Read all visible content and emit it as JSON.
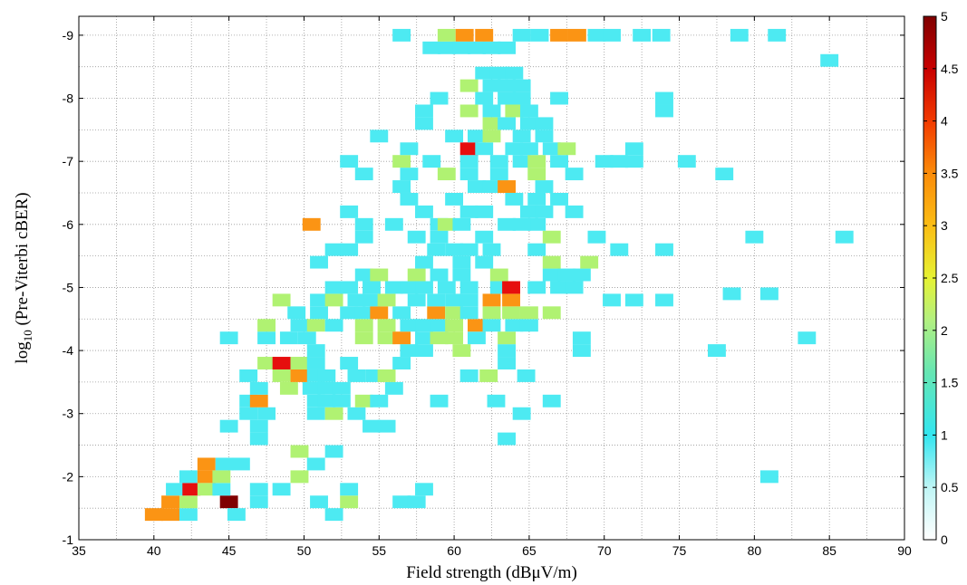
{
  "chart_data": {
    "type": "heatmap",
    "xlabel": "Field strength (dBμV/m)",
    "ylabel_main": "log",
    "ylabel_sub": "10",
    "ylabel_rest": " (Pre-Viterbi cBER)",
    "xlim": [
      35,
      90
    ],
    "ylim": [
      -9.3,
      -1
    ],
    "xticks": [
      35,
      40,
      45,
      50,
      55,
      60,
      65,
      70,
      75,
      80,
      85,
      90
    ],
    "yticks": [
      -9,
      -8,
      -7,
      -6,
      -5,
      -4,
      -3,
      -2,
      -1
    ],
    "grid": true,
    "colorbar": {
      "range": [
        0,
        5
      ],
      "ticks": [
        "0",
        "0.5",
        "1",
        "1.5",
        "2",
        "2.5",
        "3",
        "3.5",
        "4",
        "4.5",
        "5"
      ],
      "colormap": "jet-like"
    },
    "cell_size": {
      "x": 1.2,
      "y": 0.2
    },
    "cells": [
      [
        41.1,
        -1.4,
        3
      ],
      [
        40.0,
        -1.4,
        3
      ],
      [
        42.3,
        -1.4,
        1
      ],
      [
        41.1,
        -1.6,
        3
      ],
      [
        42.3,
        -1.6,
        2
      ],
      [
        45.0,
        -1.6,
        5
      ],
      [
        45.5,
        -1.4,
        1
      ],
      [
        47.0,
        -1.6,
        1
      ],
      [
        51.0,
        -1.6,
        1
      ],
      [
        53.0,
        -1.6,
        2
      ],
      [
        52.0,
        -1.4,
        1
      ],
      [
        56.5,
        -1.6,
        1
      ],
      [
        57.5,
        -1.6,
        1
      ],
      [
        58.0,
        -1.8,
        1
      ],
      [
        41.4,
        -1.8,
        1
      ],
      [
        42.5,
        -1.8,
        4
      ],
      [
        43.5,
        -1.8,
        2
      ],
      [
        44.5,
        -1.8,
        1
      ],
      [
        47.0,
        -1.8,
        1
      ],
      [
        48.5,
        -1.8,
        1
      ],
      [
        53.0,
        -1.8,
        1
      ],
      [
        42.3,
        -2.0,
        1
      ],
      [
        43.5,
        -2.0,
        3
      ],
      [
        44.5,
        -2.0,
        2
      ],
      [
        49.7,
        -2.0,
        2
      ],
      [
        43.5,
        -2.2,
        3
      ],
      [
        44.7,
        -2.2,
        1
      ],
      [
        45.8,
        -2.2,
        1
      ],
      [
        50.8,
        -2.2,
        1
      ],
      [
        49.7,
        -2.4,
        2
      ],
      [
        52.0,
        -2.4,
        1
      ],
      [
        63.5,
        -2.6,
        1
      ],
      [
        47.0,
        -2.6,
        1
      ],
      [
        81.0,
        -2.0,
        1
      ],
      [
        45.0,
        -2.8,
        1
      ],
      [
        47.0,
        -2.8,
        1
      ],
      [
        54.5,
        -2.8,
        1
      ],
      [
        55.5,
        -2.8,
        1
      ],
      [
        46.3,
        -3.0,
        1
      ],
      [
        47.5,
        -3.0,
        1
      ],
      [
        50.8,
        -3.0,
        1
      ],
      [
        52.0,
        -3.0,
        2
      ],
      [
        53.5,
        -3.0,
        1
      ],
      [
        64.5,
        -3.0,
        1
      ],
      [
        46.3,
        -3.2,
        1
      ],
      [
        47.0,
        -3.2,
        3
      ],
      [
        50.8,
        -3.2,
        1
      ],
      [
        51.5,
        -3.2,
        1
      ],
      [
        52.5,
        -3.2,
        1
      ],
      [
        54.0,
        -3.2,
        2
      ],
      [
        55.0,
        -3.2,
        1
      ],
      [
        59.0,
        -3.2,
        1
      ],
      [
        62.8,
        -3.2,
        1
      ],
      [
        66.5,
        -3.2,
        1
      ],
      [
        47.0,
        -3.4,
        1
      ],
      [
        49.0,
        -3.4,
        2
      ],
      [
        50.5,
        -3.4,
        1
      ],
      [
        51.5,
        -3.4,
        1
      ],
      [
        52.5,
        -3.4,
        1
      ],
      [
        56.0,
        -3.4,
        1
      ],
      [
        46.3,
        -3.6,
        1
      ],
      [
        48.5,
        -3.6,
        2
      ],
      [
        49.7,
        -3.6,
        3
      ],
      [
        50.8,
        -3.6,
        1
      ],
      [
        51.5,
        -3.6,
        1
      ],
      [
        53.5,
        -3.6,
        1
      ],
      [
        54.7,
        -3.6,
        1
      ],
      [
        55.5,
        -3.6,
        2
      ],
      [
        61.0,
        -3.6,
        1
      ],
      [
        62.3,
        -3.6,
        2
      ],
      [
        64.8,
        -3.6,
        1
      ],
      [
        47.5,
        -3.8,
        2
      ],
      [
        48.5,
        -3.8,
        4
      ],
      [
        49.7,
        -3.8,
        2
      ],
      [
        50.8,
        -3.8,
        1
      ],
      [
        53.0,
        -3.8,
        1
      ],
      [
        56.5,
        -3.8,
        1
      ],
      [
        63.5,
        -3.8,
        1
      ],
      [
        50.8,
        -4.0,
        1
      ],
      [
        57.0,
        -4.0,
        1
      ],
      [
        58.0,
        -4.0,
        1
      ],
      [
        60.5,
        -4.0,
        2
      ],
      [
        63.5,
        -4.0,
        1
      ],
      [
        68.5,
        -4.0,
        1
      ],
      [
        77.5,
        -4.0,
        1
      ],
      [
        45.0,
        -4.2,
        1
      ],
      [
        47.5,
        -4.2,
        1
      ],
      [
        49.0,
        -4.2,
        1
      ],
      [
        50.2,
        -4.2,
        1
      ],
      [
        54.0,
        -4.2,
        2
      ],
      [
        55.5,
        -4.2,
        2
      ],
      [
        56.5,
        -4.2,
        3
      ],
      [
        58.0,
        -4.2,
        1
      ],
      [
        59.0,
        -4.2,
        2
      ],
      [
        60.0,
        -4.2,
        2
      ],
      [
        61.5,
        -4.2,
        1
      ],
      [
        63.5,
        -4.2,
        2
      ],
      [
        68.5,
        -4.2,
        1
      ],
      [
        83.5,
        -4.2,
        1
      ],
      [
        47.5,
        -4.4,
        2
      ],
      [
        49.7,
        -4.4,
        1
      ],
      [
        50.8,
        -4.4,
        2
      ],
      [
        52.0,
        -4.4,
        1
      ],
      [
        54.0,
        -4.4,
        2
      ],
      [
        55.5,
        -4.4,
        2
      ],
      [
        57.0,
        -4.4,
        1
      ],
      [
        58.0,
        -4.4,
        1
      ],
      [
        59.0,
        -4.4,
        1
      ],
      [
        60.0,
        -4.4,
        2
      ],
      [
        61.5,
        -4.4,
        3
      ],
      [
        62.5,
        -4.4,
        1
      ],
      [
        64.0,
        -4.4,
        1
      ],
      [
        65.0,
        -4.4,
        1
      ],
      [
        49.5,
        -4.6,
        1
      ],
      [
        51.0,
        -4.6,
        1
      ],
      [
        53.0,
        -4.6,
        1
      ],
      [
        54.0,
        -4.6,
        1
      ],
      [
        55.0,
        -4.6,
        3
      ],
      [
        56.5,
        -4.6,
        1
      ],
      [
        58.8,
        -4.6,
        3
      ],
      [
        60.0,
        -4.6,
        2
      ],
      [
        61.0,
        -4.6,
        1
      ],
      [
        62.5,
        -4.6,
        2
      ],
      [
        63.8,
        -4.6,
        2
      ],
      [
        65.0,
        -4.6,
        2
      ],
      [
        66.5,
        -4.6,
        2
      ],
      [
        48.5,
        -4.8,
        2
      ],
      [
        51.0,
        -4.8,
        1
      ],
      [
        52.0,
        -4.8,
        2
      ],
      [
        53.5,
        -4.8,
        1
      ],
      [
        54.5,
        -4.8,
        1
      ],
      [
        55.5,
        -4.8,
        2
      ],
      [
        57.5,
        -4.8,
        1
      ],
      [
        58.8,
        -4.8,
        1
      ],
      [
        60.0,
        -4.8,
        1
      ],
      [
        61.0,
        -4.8,
        1
      ],
      [
        62.5,
        -4.8,
        3
      ],
      [
        63.8,
        -4.8,
        3
      ],
      [
        70.5,
        -4.8,
        1
      ],
      [
        72.0,
        -4.8,
        1
      ],
      [
        74.0,
        -4.8,
        1
      ],
      [
        52.0,
        -5.0,
        1
      ],
      [
        53.0,
        -5.0,
        1
      ],
      [
        54.5,
        -5.0,
        1
      ],
      [
        56.0,
        -5.0,
        1
      ],
      [
        57.0,
        -5.0,
        1
      ],
      [
        58.0,
        -5.0,
        1
      ],
      [
        59.5,
        -5.0,
        1
      ],
      [
        61.0,
        -5.0,
        1
      ],
      [
        63.0,
        -5.0,
        1
      ],
      [
        63.8,
        -5.0,
        4
      ],
      [
        65.5,
        -5.0,
        1
      ],
      [
        67.0,
        -5.0,
        1
      ],
      [
        68.0,
        -5.0,
        1
      ],
      [
        78.5,
        -4.9,
        1
      ],
      [
        81.0,
        -4.9,
        1
      ],
      [
        54.0,
        -5.2,
        1
      ],
      [
        55.0,
        -5.2,
        2
      ],
      [
        57.5,
        -5.2,
        2
      ],
      [
        59.0,
        -5.2,
        1
      ],
      [
        60.5,
        -5.2,
        1
      ],
      [
        63.0,
        -5.2,
        2
      ],
      [
        66.5,
        -5.2,
        1
      ],
      [
        67.5,
        -5.2,
        1
      ],
      [
        68.5,
        -5.2,
        1
      ],
      [
        51.0,
        -5.4,
        1
      ],
      [
        58.0,
        -5.4,
        1
      ],
      [
        60.5,
        -5.4,
        1
      ],
      [
        62.0,
        -5.4,
        1
      ],
      [
        66.5,
        -5.4,
        2
      ],
      [
        69.0,
        -5.4,
        2
      ],
      [
        52.0,
        -5.6,
        1
      ],
      [
        53.0,
        -5.6,
        1
      ],
      [
        58.8,
        -5.6,
        1
      ],
      [
        60.0,
        -5.6,
        1
      ],
      [
        61.0,
        -5.6,
        1
      ],
      [
        62.5,
        -5.6,
        1
      ],
      [
        65.5,
        -5.6,
        1
      ],
      [
        71.0,
        -5.6,
        1
      ],
      [
        74.0,
        -5.6,
        1
      ],
      [
        54.0,
        -5.8,
        1
      ],
      [
        57.5,
        -5.8,
        1
      ],
      [
        59.0,
        -5.8,
        1
      ],
      [
        62.0,
        -5.8,
        1
      ],
      [
        66.5,
        -5.8,
        2
      ],
      [
        69.5,
        -5.8,
        1
      ],
      [
        80.0,
        -5.8,
        1
      ],
      [
        86.0,
        -5.8,
        1
      ],
      [
        56.0,
        -6.0,
        1
      ],
      [
        59.0,
        -6.0,
        1
      ],
      [
        63.5,
        -6.0,
        1
      ],
      [
        65.5,
        -6.0,
        1
      ],
      [
        50.5,
        -6.0,
        3
      ],
      [
        54.0,
        -6.0,
        1
      ],
      [
        58.0,
        -6.2,
        1
      ],
      [
        61.0,
        -6.2,
        1
      ],
      [
        62.0,
        -6.2,
        1
      ],
      [
        65.0,
        -6.2,
        1
      ],
      [
        66.0,
        -6.2,
        1
      ],
      [
        68.0,
        -6.2,
        1
      ],
      [
        53.0,
        -6.2,
        1
      ],
      [
        59.5,
        -6.0,
        2
      ],
      [
        60.5,
        -6.0,
        1
      ],
      [
        64.5,
        -6.0,
        1
      ],
      [
        57.0,
        -6.4,
        1
      ],
      [
        60.0,
        -6.4,
        1
      ],
      [
        64.0,
        -6.4,
        1
      ],
      [
        65.5,
        -6.4,
        1
      ],
      [
        67.0,
        -6.4,
        1
      ],
      [
        56.5,
        -6.6,
        1
      ],
      [
        61.5,
        -6.6,
        1
      ],
      [
        62.5,
        -6.6,
        1
      ],
      [
        63.5,
        -6.6,
        3
      ],
      [
        66.0,
        -6.6,
        1
      ],
      [
        57.0,
        -6.8,
        1
      ],
      [
        59.5,
        -6.8,
        2
      ],
      [
        61.0,
        -6.8,
        1
      ],
      [
        63.0,
        -6.8,
        1
      ],
      [
        65.5,
        -6.8,
        2
      ],
      [
        54.0,
        -6.8,
        1
      ],
      [
        68.0,
        -6.8,
        1
      ],
      [
        78.0,
        -6.8,
        1
      ],
      [
        53.0,
        -7.0,
        1
      ],
      [
        56.5,
        -7.0,
        2
      ],
      [
        58.5,
        -7.0,
        1
      ],
      [
        61.0,
        -7.0,
        1
      ],
      [
        63.0,
        -7.0,
        1
      ],
      [
        64.5,
        -7.0,
        1
      ],
      [
        65.5,
        -7.0,
        2
      ],
      [
        67.0,
        -7.0,
        1
      ],
      [
        70.0,
        -7.0,
        1
      ],
      [
        71.0,
        -7.0,
        1
      ],
      [
        72.0,
        -7.0,
        1
      ],
      [
        75.5,
        -7.0,
        1
      ],
      [
        57.0,
        -7.2,
        1
      ],
      [
        61.0,
        -7.2,
        4
      ],
      [
        62.0,
        -7.2,
        1
      ],
      [
        64.0,
        -7.2,
        1
      ],
      [
        65.0,
        -7.2,
        1
      ],
      [
        66.5,
        -7.2,
        1
      ],
      [
        67.5,
        -7.2,
        2
      ],
      [
        72.0,
        -7.2,
        1
      ],
      [
        55.0,
        -7.4,
        1
      ],
      [
        60.0,
        -7.4,
        1
      ],
      [
        61.5,
        -7.4,
        1
      ],
      [
        62.5,
        -7.4,
        2
      ],
      [
        64.5,
        -7.4,
        1
      ],
      [
        66.0,
        -7.4,
        1
      ],
      [
        58.0,
        -7.6,
        1
      ],
      [
        62.5,
        -7.6,
        2
      ],
      [
        63.5,
        -7.6,
        1
      ],
      [
        65.0,
        -7.6,
        1
      ],
      [
        66.0,
        -7.6,
        1
      ],
      [
        58.0,
        -7.8,
        1
      ],
      [
        61.0,
        -7.8,
        2
      ],
      [
        62.5,
        -7.8,
        1
      ],
      [
        64.0,
        -7.8,
        2
      ],
      [
        65.0,
        -7.8,
        1
      ],
      [
        74.0,
        -7.8,
        1
      ],
      [
        59.0,
        -8.0,
        1
      ],
      [
        62.0,
        -8.0,
        1
      ],
      [
        63.5,
        -8.0,
        1
      ],
      [
        64.5,
        -8.0,
        1
      ],
      [
        67.0,
        -8.0,
        1
      ],
      [
        74.0,
        -8.0,
        1
      ],
      [
        61.0,
        -8.2,
        2
      ],
      [
        62.5,
        -8.2,
        1
      ],
      [
        63.5,
        -8.2,
        1
      ],
      [
        64.5,
        -8.2,
        1
      ],
      [
        62.0,
        -8.4,
        1
      ],
      [
        63.0,
        -8.4,
        1
      ],
      [
        64.0,
        -8.4,
        1
      ],
      [
        58.5,
        -8.8,
        1
      ],
      [
        59.5,
        -8.8,
        1
      ],
      [
        60.5,
        -8.8,
        1
      ],
      [
        61.5,
        -8.8,
        1
      ],
      [
        62.5,
        -8.8,
        1
      ],
      [
        63.5,
        -8.8,
        1
      ],
      [
        85.0,
        -8.6,
        1
      ],
      [
        56.5,
        -9.0,
        1
      ],
      [
        59.5,
        -9.0,
        2
      ],
      [
        60.7,
        -9.0,
        3
      ],
      [
        62.0,
        -9.0,
        3
      ],
      [
        64.5,
        -9.0,
        1
      ],
      [
        65.7,
        -9.0,
        1
      ],
      [
        67.0,
        -9.0,
        3
      ],
      [
        68.2,
        -9.0,
        3
      ],
      [
        69.5,
        -9.0,
        1
      ],
      [
        70.5,
        -9.0,
        1
      ],
      [
        72.5,
        -9.0,
        1
      ],
      [
        73.8,
        -9.0,
        1
      ],
      [
        79.0,
        -9.0,
        1
      ],
      [
        81.5,
        -9.0,
        1
      ]
    ]
  }
}
